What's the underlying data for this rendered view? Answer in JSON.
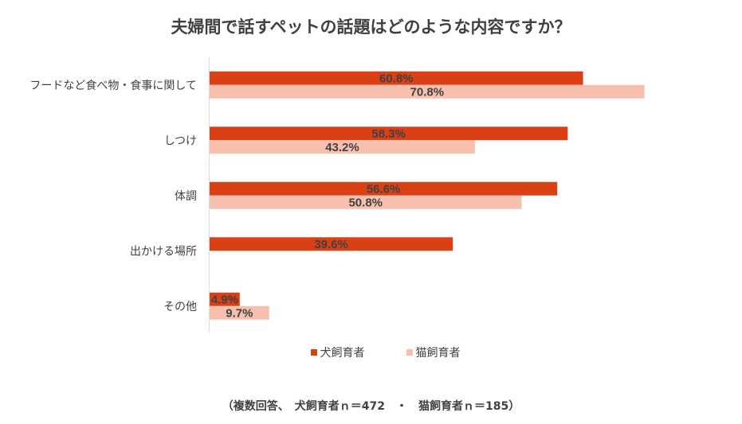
{
  "chart_data": {
    "type": "bar",
    "orientation": "horizontal",
    "title": "夫婦間で話すペットの話題はどのような内容ですか？",
    "categories": [
      "フードなど食べ物・食事に関して",
      "しつけ",
      "体調",
      "出かける場所",
      "その他"
    ],
    "series": [
      {
        "name": "犬飼育者",
        "values": [
          60.8,
          58.3,
          56.6,
          39.6,
          4.9
        ],
        "labels": [
          "60.8%",
          "58.3%",
          "56.6%",
          "39.6%",
          "4.9%"
        ]
      },
      {
        "name": "猫飼育者",
        "values": [
          70.8,
          43.2,
          50.8,
          null,
          9.7
        ],
        "labels": [
          "70.8%",
          "43.2%",
          "50.8%",
          "",
          "9.7%"
        ]
      }
    ],
    "xlim": [
      0,
      75
    ],
    "grid": false,
    "legend_position": "bottom",
    "colors": [
      "#DA4015",
      "#F7C0AE"
    ],
    "footnote": "（複数回答、　犬飼育者ｎ＝472　・　猫飼育者ｎ＝185）"
  }
}
